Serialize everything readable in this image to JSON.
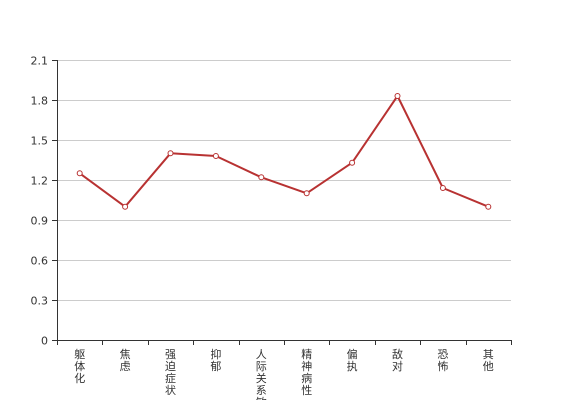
{
  "chart_data": {
    "type": "line",
    "categories": [
      "躯体化",
      "焦虑",
      "强迫症状",
      "抑郁",
      "人际关系敏感",
      "精神病性",
      "偏执",
      "敌对",
      "恐怖",
      "其他"
    ],
    "series": [
      {
        "values": [
          1.25,
          1.0,
          1.4,
          1.38,
          1.22,
          1.1,
          1.33,
          1.83,
          1.14,
          1.0
        ]
      }
    ],
    "ylim": [
      0,
      2.1
    ],
    "yticks": [
      "0",
      "0.3",
      "0.6",
      "0.9",
      "1.2",
      "1.5",
      "1.8",
      "2.1"
    ],
    "grid": true,
    "colors": {
      "line": "#b83232",
      "point_fill": "#ffffff",
      "grid": "#cccccc",
      "axis": "#333333",
      "text": "#333333"
    }
  }
}
